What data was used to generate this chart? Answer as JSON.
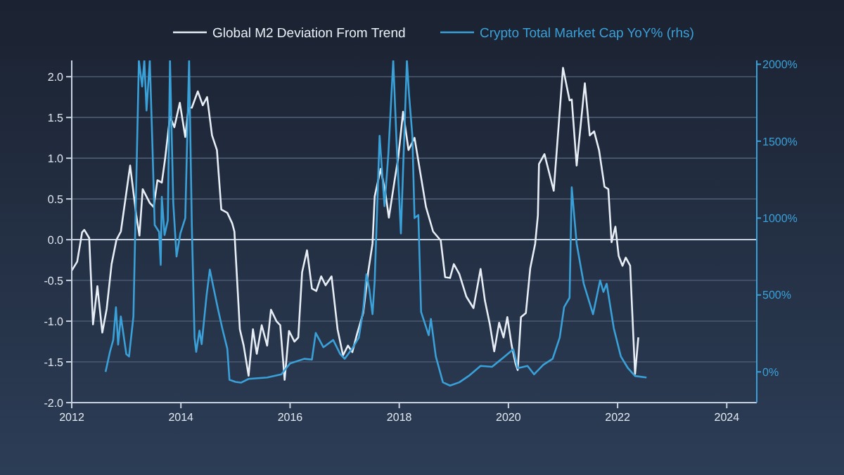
{
  "chart_data": {
    "type": "line",
    "xlim": [
      2012,
      2024.55
    ],
    "xticks": [
      2012,
      2014,
      2016,
      2018,
      2020,
      2022,
      2024
    ],
    "ylim": [
      -2,
      2.2
    ],
    "yticks": [
      {
        "value": -2,
        "label": "-2.0"
      },
      {
        "value": -1.5,
        "label": "-1.5"
      },
      {
        "value": -1,
        "label": "-1.0"
      },
      {
        "value": -0.5,
        "label": "-0.5"
      },
      {
        "value": 0,
        "label": "0.0"
      },
      {
        "value": 0.5,
        "label": "0.5"
      },
      {
        "value": 1,
        "label": "1.0"
      },
      {
        "value": 1.5,
        "label": "1.5"
      },
      {
        "value": 2,
        "label": "2.0"
      }
    ],
    "y2lim": [
      -200,
      2025
    ],
    "y2ticks": [
      {
        "value": 0,
        "label": "0%"
      },
      {
        "value": 500,
        "label": "500%"
      },
      {
        "value": 1000,
        "label": "1000%"
      },
      {
        "value": 1500,
        "label": "1500%"
      },
      {
        "value": 2000,
        "label": "2000%"
      }
    ],
    "grid": "y",
    "legend": "top",
    "ref_lines": [
      {
        "axis": "y",
        "value": 0,
        "color": "#c8d2e0"
      }
    ],
    "series": [
      {
        "name": "Global M2 Deviation From Trend",
        "color": "#e8eef5",
        "x": [
          2012.0,
          2012.1,
          2012.19,
          2012.23,
          2012.32,
          2012.39,
          2012.47,
          2012.56,
          2012.64,
          2012.73,
          2012.82,
          2012.9,
          2013.07,
          2013.18,
          2013.24,
          2013.3,
          2013.43,
          2013.5,
          2013.57,
          2013.65,
          2013.71,
          2013.8,
          2013.88,
          2013.98,
          2014.08,
          2014.14,
          2014.2,
          2014.31,
          2014.4,
          2014.48,
          2014.57,
          2014.66,
          2014.74,
          2014.85,
          2014.94,
          2014.98,
          2015.08,
          2015.15,
          2015.24,
          2015.32,
          2015.39,
          2015.48,
          2015.58,
          2015.65,
          2015.75,
          2015.82,
          2015.9,
          2015.98,
          2016.08,
          2016.15,
          2016.22,
          2016.31,
          2016.4,
          2016.48,
          2016.57,
          2016.65,
          2016.76,
          2016.87,
          2016.97,
          2017.06,
          2017.14,
          2017.23,
          2017.34,
          2017.43,
          2017.51,
          2017.55,
          2017.66,
          2017.74,
          2017.81,
          2017.92,
          2017.98,
          2018.07,
          2018.17,
          2018.28,
          2018.49,
          2018.62,
          2018.76,
          2018.84,
          2018.93,
          2019.0,
          2019.1,
          2019.23,
          2019.36,
          2019.49,
          2019.57,
          2019.66,
          2019.74,
          2019.83,
          2019.91,
          2019.98,
          2020.06,
          2020.13,
          2020.17,
          2020.23,
          2020.32,
          2020.4,
          2020.49,
          2020.54,
          2020.56,
          2020.66,
          2020.77,
          2020.83,
          2021.0,
          2021.12,
          2021.16,
          2021.25,
          2021.4,
          2021.49,
          2021.57,
          2021.66,
          2021.76,
          2021.83,
          2021.89,
          2021.96,
          2022.02,
          2022.09,
          2022.15,
          2022.23,
          2022.32,
          2022.38
        ],
        "values": [
          -0.38,
          -0.27,
          0.09,
          0.12,
          0.02,
          -1.04,
          -0.57,
          -1.14,
          -0.85,
          -0.3,
          0.0,
          0.1,
          0.91,
          0.31,
          0.05,
          0.62,
          0.45,
          0.4,
          0.73,
          0.7,
          0.99,
          1.51,
          1.38,
          1.68,
          1.26,
          1.62,
          1.62,
          1.82,
          1.65,
          1.75,
          1.28,
          1.1,
          0.37,
          0.33,
          0.2,
          0.1,
          -1.1,
          -1.3,
          -1.67,
          -1.1,
          -1.4,
          -1.05,
          -1.3,
          -0.86,
          -1.0,
          -1.05,
          -1.72,
          -1.12,
          -1.25,
          -1.2,
          -0.4,
          -0.13,
          -0.6,
          -0.63,
          -0.45,
          -0.56,
          -0.45,
          -1.1,
          -1.42,
          -1.3,
          -1.38,
          -1.15,
          -0.9,
          -0.4,
          -0.05,
          0.53,
          0.87,
          0.6,
          0.27,
          0.75,
          1.0,
          1.57,
          1.1,
          1.25,
          0.4,
          0.1,
          -0.01,
          -0.46,
          -0.47,
          -0.3,
          -0.42,
          -0.7,
          -0.84,
          -0.36,
          -0.75,
          -1.04,
          -1.37,
          -1.02,
          -1.2,
          -0.95,
          -1.3,
          -1.52,
          -1.6,
          -0.95,
          -0.9,
          -0.35,
          -0.05,
          0.3,
          0.93,
          1.05,
          0.76,
          0.6,
          2.11,
          1.71,
          1.72,
          0.91,
          1.92,
          1.28,
          1.33,
          1.1,
          0.65,
          0.62,
          -0.03,
          0.16,
          -0.2,
          -0.32,
          -0.22,
          -0.32,
          -1.65,
          -1.2
        ]
      },
      {
        "name": "Crypto Total Market Cap YoY% (rhs)",
        "color": "#3aa0d8",
        "axis": "y2",
        "x": [
          2012.62,
          2012.7,
          2012.76,
          2012.81,
          2012.85,
          2012.9,
          2013.0,
          2013.05,
          2013.13,
          2013.23,
          2013.29,
          2013.33,
          2013.37,
          2013.43,
          2013.48,
          2013.52,
          2013.6,
          2013.63,
          2013.65,
          2013.7,
          2013.76,
          2013.8,
          2013.86,
          2013.92,
          2013.99,
          2014.08,
          2014.15,
          2014.2,
          2014.25,
          2014.28,
          2014.34,
          2014.38,
          2014.47,
          2014.53,
          2014.59,
          2014.68,
          2014.76,
          2014.85,
          2014.89,
          2015.0,
          2015.1,
          2015.24,
          2015.58,
          2015.84,
          2016.0,
          2016.26,
          2016.4,
          2016.47,
          2016.61,
          2016.79,
          2016.92,
          2017.0,
          2017.13,
          2017.26,
          2017.34,
          2017.4,
          2017.45,
          2017.51,
          2017.55,
          2017.64,
          2017.73,
          2017.8,
          2017.89,
          2017.95,
          2018.03,
          2018.14,
          2018.18,
          2018.24,
          2018.28,
          2018.35,
          2018.4,
          2018.54,
          2018.58,
          2018.67,
          2018.8,
          2018.93,
          2019.1,
          2019.27,
          2019.49,
          2019.7,
          2019.91,
          2020.09,
          2020.17,
          2020.35,
          2020.47,
          2020.64,
          2020.81,
          2020.94,
          2021.02,
          2021.12,
          2021.16,
          2021.25,
          2021.38,
          2021.55,
          2021.68,
          2021.74,
          2021.8,
          2021.93,
          2022.06,
          2022.19,
          2022.32,
          2022.53
        ],
        "values": [
          0,
          130,
          207,
          420,
          177,
          360,
          115,
          100,
          360,
          2025,
          1855,
          2025,
          1700,
          2025,
          1450,
          955,
          910,
          696,
          1138,
          890,
          985,
          2025,
          1100,
          750,
          900,
          1000,
          2025,
          950,
          222,
          130,
          268,
          180,
          497,
          665,
          560,
          406,
          280,
          150,
          -52,
          -65,
          -70,
          -46,
          -37,
          -16,
          55,
          85,
          80,
          253,
          160,
          207,
          115,
          85,
          147,
          223,
          406,
          635,
          543,
          375,
          590,
          1535,
          1077,
          1413,
          2025,
          1500,
          900,
          2025,
          1800,
          1535,
          1000,
          1020,
          390,
          238,
          344,
          100,
          -68,
          -89,
          -68,
          -27,
          39,
          33,
          94,
          147,
          24,
          39,
          -16,
          46,
          85,
          223,
          421,
          482,
          1200,
          834,
          573,
          375,
          595,
          520,
          573,
          284,
          100,
          24,
          -27,
          -37
        ]
      }
    ]
  }
}
